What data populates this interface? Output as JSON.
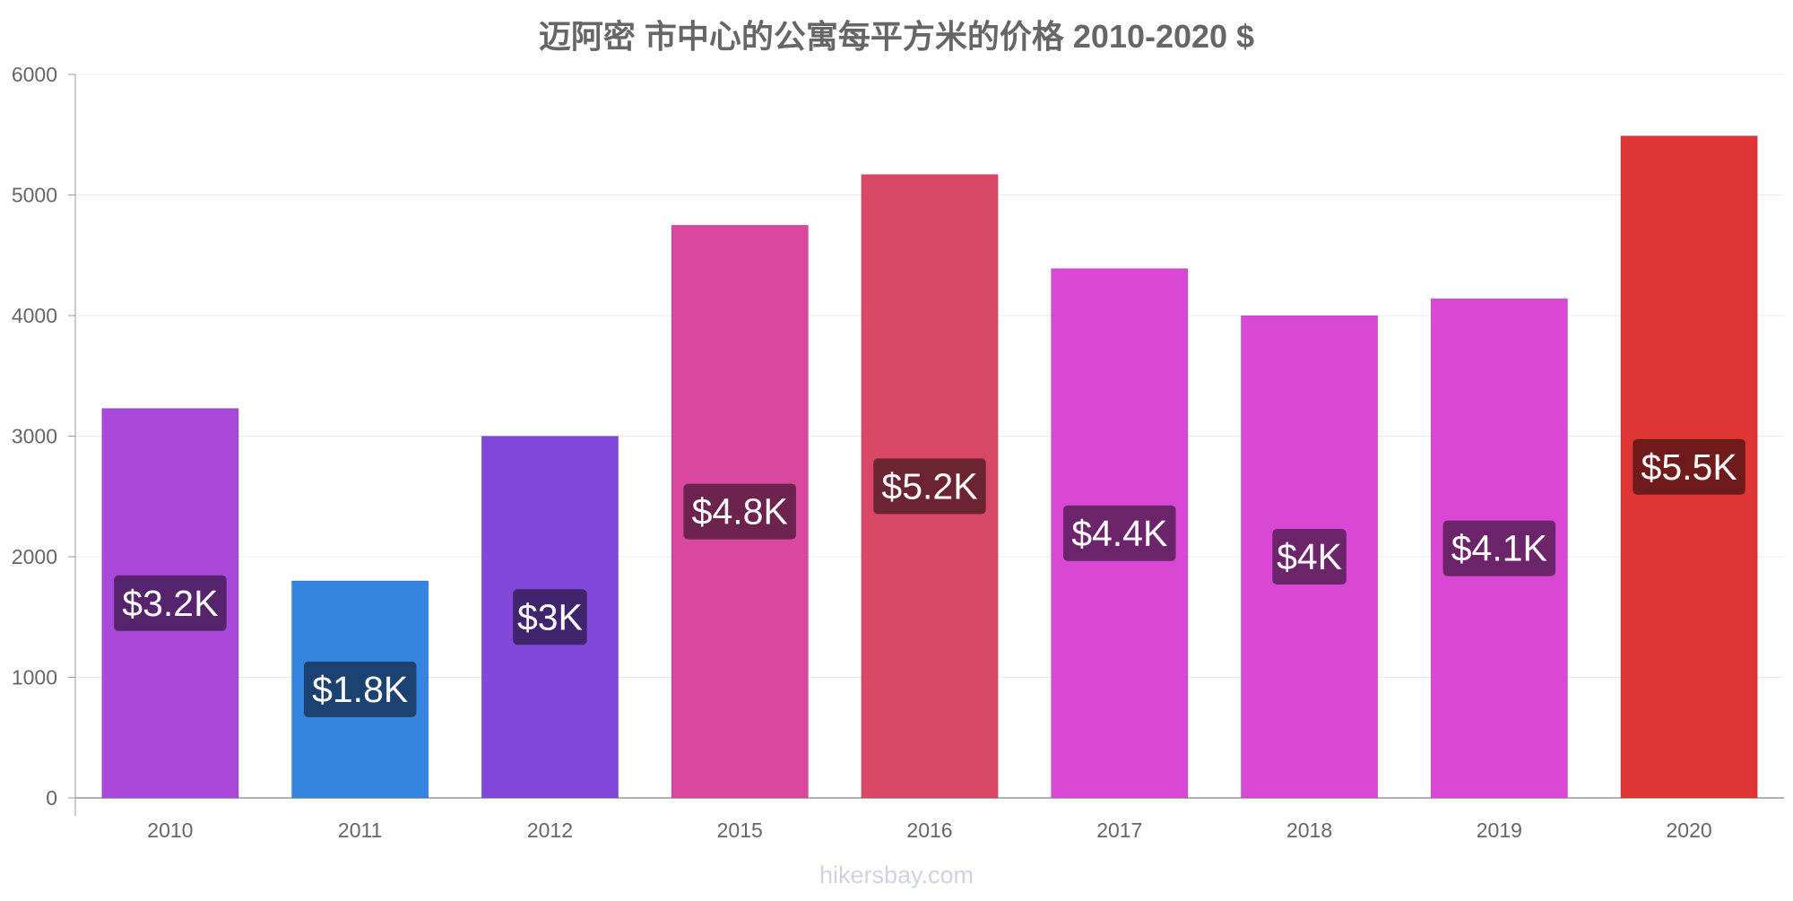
{
  "chart_data": {
    "type": "bar",
    "title": "迈阿密 市中心的公寓每平方米的价格 2010-2020 $",
    "xlabel": "",
    "ylabel": "",
    "categories": [
      "2010",
      "2011",
      "2012",
      "2015",
      "2016",
      "2017",
      "2018",
      "2019",
      "2020"
    ],
    "values": [
      3230,
      1800,
      3000,
      4750,
      5170,
      4390,
      4000,
      4140,
      5490
    ],
    "data_labels": [
      "$3.2K",
      "$1.8K",
      "$3K",
      "$4.8K",
      "$5.2K",
      "$4.4K",
      "$4K",
      "$4.1K",
      "$5.5K"
    ],
    "bar_colors": [
      "#a948d9",
      "#3584e0",
      "#8049d9",
      "#d9489e",
      "#d94866",
      "#d948d5",
      "#d948d5",
      "#d948d5",
      "#e03535"
    ],
    "label_bg_colors": [
      "#55246c",
      "#1b4270",
      "#40256c",
      "#6c244f",
      "#6c2433",
      "#6c246a",
      "#6c246a",
      "#6c246a",
      "#701b1b"
    ],
    "ylim": [
      0,
      6000
    ],
    "y_ticks": [
      0,
      1000,
      2000,
      3000,
      4000,
      5000,
      6000
    ],
    "grid": true,
    "legend": "none"
  },
  "watermark": "hikersbay.com"
}
